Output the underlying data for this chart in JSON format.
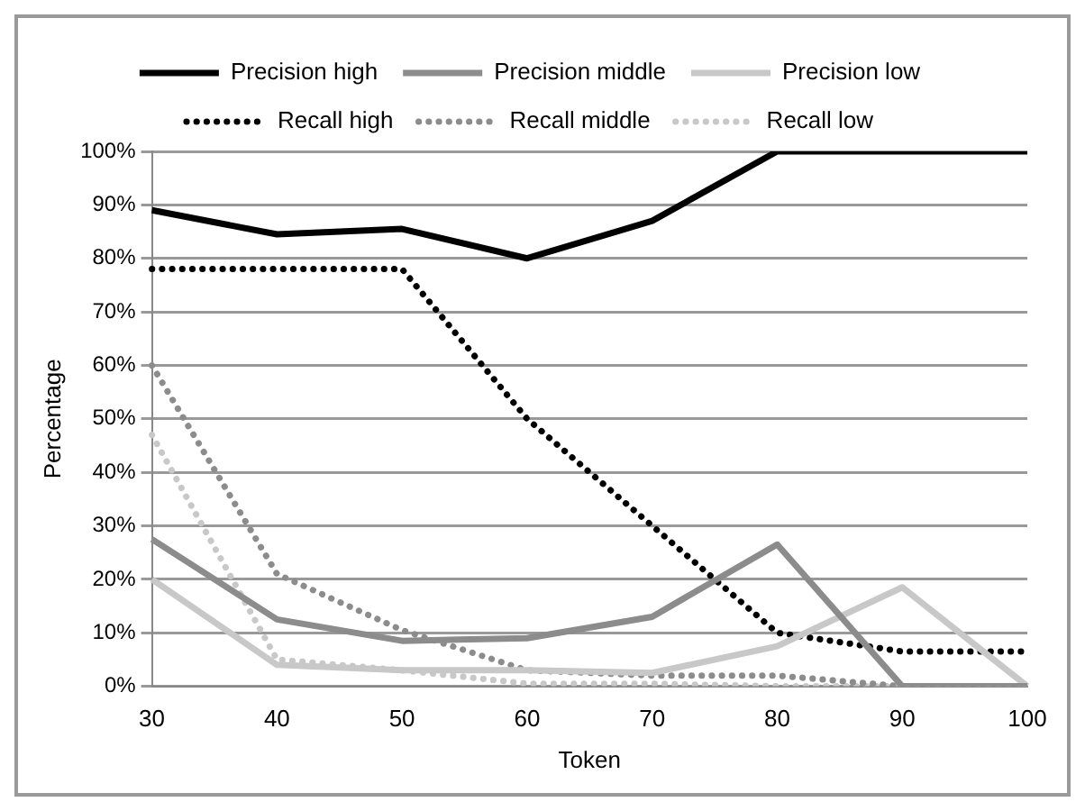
{
  "chart_data": {
    "type": "line",
    "xlabel": "Token",
    "ylabel": "Percentage",
    "categories": [
      "30",
      "40",
      "50",
      "60",
      "70",
      "80",
      "90",
      "100"
    ],
    "series": [
      {
        "name": "Precision high",
        "color": "#000000",
        "line_style": "solid",
        "values": [
          89,
          84.5,
          85.5,
          80,
          87,
          100,
          100,
          100
        ]
      },
      {
        "name": "Precision middle",
        "color": "#8c8c8c",
        "line_style": "solid",
        "values": [
          27.5,
          12.5,
          8.5,
          9,
          13,
          26.5,
          0,
          0
        ]
      },
      {
        "name": "Precision low",
        "color": "#c8c8c8",
        "line_style": "solid",
        "values": [
          20,
          4,
          3,
          3,
          2.5,
          7.5,
          18.5,
          0
        ]
      },
      {
        "name": "Recall high",
        "color": "#000000",
        "line_style": "dotted",
        "values": [
          78,
          78,
          78,
          50,
          30,
          10,
          6.5,
          6.5
        ]
      },
      {
        "name": "Recall middle",
        "color": "#8c8c8c",
        "line_style": "dotted",
        "values": [
          60,
          21,
          10.5,
          3,
          2,
          2,
          0,
          0
        ]
      },
      {
        "name": "Recall low",
        "color": "#c8c8c8",
        "line_style": "dotted",
        "values": [
          47,
          5,
          3,
          0.5,
          0.5,
          0,
          0,
          0
        ]
      }
    ],
    "ylim": [
      0,
      100
    ],
    "yticks": [
      {
        "value": 0,
        "label": "0%"
      },
      {
        "value": 10,
        "label": "10%"
      },
      {
        "value": 20,
        "label": "20%"
      },
      {
        "value": 30,
        "label": "30%"
      },
      {
        "value": 40,
        "label": "40%"
      },
      {
        "value": 50,
        "label": "50%"
      },
      {
        "value": 60,
        "label": "60%"
      },
      {
        "value": 70,
        "label": "70%"
      },
      {
        "value": 80,
        "label": "80%"
      },
      {
        "value": 90,
        "label": "90%"
      },
      {
        "value": 100,
        "label": "100%"
      }
    ],
    "grid": "y",
    "legend": "top",
    "marker": "none"
  }
}
